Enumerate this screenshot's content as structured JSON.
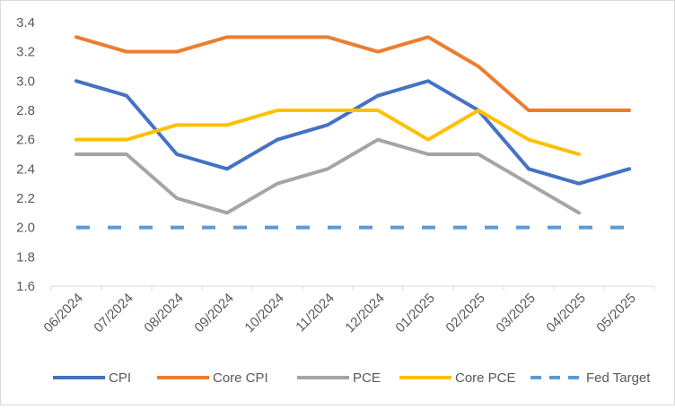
{
  "chart_data": {
    "type": "line",
    "title": "",
    "xlabel": "",
    "ylabel": "",
    "categories": [
      "06/2024",
      "07/2024",
      "08/2024",
      "09/2024",
      "10/2024",
      "11/2024",
      "12/2024",
      "01/2025",
      "02/2025",
      "03/2025",
      "04/2025",
      "05/2025"
    ],
    "ylim": [
      1.6,
      3.4
    ],
    "yticks": [
      "1.6",
      "1.8",
      "2.0",
      "2.2",
      "2.4",
      "2.6",
      "2.8",
      "3.0",
      "3.2",
      "3.4"
    ],
    "grid": false,
    "legend_position": "bottom",
    "series": [
      {
        "name": "CPI",
        "color": "#4472c4",
        "dash": false,
        "values": [
          3.0,
          2.9,
          2.5,
          2.4,
          2.6,
          2.7,
          2.9,
          3.0,
          2.8,
          2.4,
          2.3,
          2.4
        ]
      },
      {
        "name": "Core CPI",
        "color": "#ed7d31",
        "dash": false,
        "values": [
          3.3,
          3.2,
          3.2,
          3.3,
          3.3,
          3.3,
          3.2,
          3.3,
          3.1,
          2.8,
          2.8,
          2.8
        ]
      },
      {
        "name": "PCE",
        "color": "#a5a5a5",
        "dash": false,
        "values": [
          2.5,
          2.5,
          2.2,
          2.1,
          2.3,
          2.4,
          2.6,
          2.5,
          2.5,
          2.3,
          2.1,
          null
        ]
      },
      {
        "name": "Core PCE",
        "color": "#ffc000",
        "dash": false,
        "values": [
          2.6,
          2.6,
          2.7,
          2.7,
          2.8,
          2.8,
          2.8,
          2.6,
          2.8,
          2.6,
          2.5,
          null
        ]
      },
      {
        "name": "Fed Target",
        "color": "#5b9bd5",
        "dash": true,
        "values": [
          2.0,
          2.0,
          2.0,
          2.0,
          2.0,
          2.0,
          2.0,
          2.0,
          2.0,
          2.0,
          2.0,
          2.0
        ]
      }
    ]
  }
}
